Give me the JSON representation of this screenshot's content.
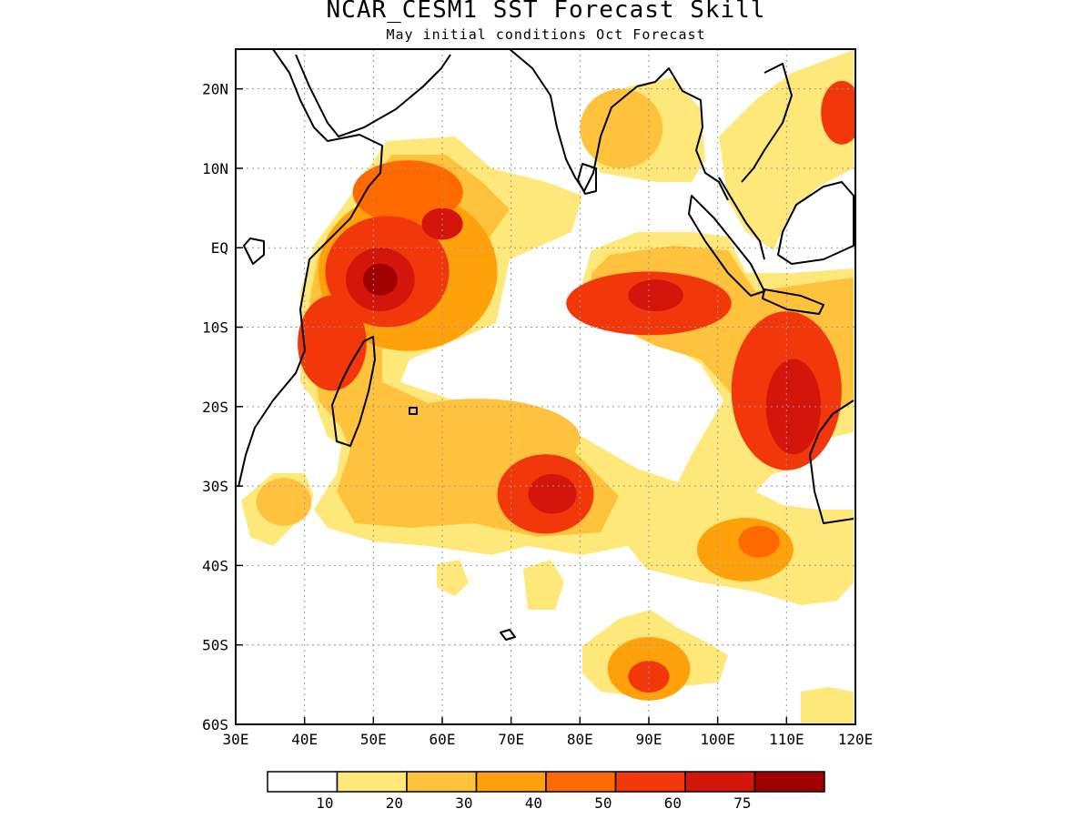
{
  "title": "NCAR_CESM1 SST Forecast Skill",
  "subtitle": "May initial conditions  Oct Forecast",
  "colors": {
    "levels": [
      "#ffffff",
      "#ffe87a",
      "#ffc23c",
      "#ffa10a",
      "#ff6a00",
      "#f2380a",
      "#d4150c",
      "#a00000"
    ],
    "coast": "#000000",
    "grid": "#9a9a9a"
  },
  "chart_data": {
    "type": "heatmap",
    "title": "NCAR_CESM1 SST Forecast Skill",
    "subtitle": "May initial conditions  Oct Forecast",
    "xlim": [
      30,
      120
    ],
    "ylim": [
      -60,
      25
    ],
    "x_ticks": [
      30,
      40,
      50,
      60,
      70,
      80,
      90,
      100,
      110,
      120
    ],
    "x_tick_labels": [
      "30E",
      "40E",
      "50E",
      "60E",
      "70E",
      "80E",
      "90E",
      "100E",
      "110E",
      "120E"
    ],
    "y_ticks": [
      20,
      10,
      0,
      -10,
      -20,
      -30,
      -40,
      -50,
      -60
    ],
    "y_tick_labels": [
      "20N",
      "10N",
      "EQ",
      "10S",
      "20S",
      "30S",
      "40S",
      "50S",
      "60S"
    ],
    "grid": true,
    "colorbar": {
      "position": "bottom",
      "thresholds": [
        10,
        20,
        30,
        40,
        50,
        60,
        75
      ],
      "labels": [
        "10",
        "20",
        "30",
        "40",
        "50",
        "60",
        "75"
      ]
    },
    "regions": [
      {
        "lon": 55,
        "lat": -3,
        "rx": 13,
        "ry": 10,
        "level": 3
      },
      {
        "lon": 52,
        "lat": -3,
        "rx": 9,
        "ry": 7,
        "level": 5
      },
      {
        "lon": 51,
        "lat": -4,
        "rx": 5,
        "ry": 4,
        "level": 6
      },
      {
        "lon": 51,
        "lat": -4,
        "rx": 2.5,
        "ry": 2,
        "level": 7
      },
      {
        "lon": 55,
        "lat": 7,
        "rx": 8,
        "ry": 4,
        "level": 4
      },
      {
        "lon": 44,
        "lat": -12,
        "rx": 5,
        "ry": 6,
        "level": 5
      },
      {
        "lon": 60,
        "lat": 3,
        "rx": 3,
        "ry": 2,
        "level": 6
      },
      {
        "lon": 65,
        "lat": -24,
        "rx": 15,
        "ry": 5,
        "level": 2
      },
      {
        "lon": 75,
        "lat": -31,
        "rx": 7,
        "ry": 5,
        "level": 5
      },
      {
        "lon": 76,
        "lat": -31,
        "rx": 3.5,
        "ry": 2.5,
        "level": 6
      },
      {
        "lon": 90,
        "lat": -7,
        "rx": 12,
        "ry": 4,
        "level": 5
      },
      {
        "lon": 91,
        "lat": -6,
        "rx": 4,
        "ry": 2,
        "level": 6
      },
      {
        "lon": 110,
        "lat": -18,
        "rx": 8,
        "ry": 10,
        "level": 5
      },
      {
        "lon": 111,
        "lat": -20,
        "rx": 4,
        "ry": 6,
        "level": 6
      },
      {
        "lon": 104,
        "lat": -38,
        "rx": 7,
        "ry": 4,
        "level": 3
      },
      {
        "lon": 106,
        "lat": -37,
        "rx": 3,
        "ry": 2,
        "level": 4
      },
      {
        "lon": 90,
        "lat": -53,
        "rx": 6,
        "ry": 4,
        "level": 3
      },
      {
        "lon": 90,
        "lat": -54,
        "rx": 3,
        "ry": 2,
        "level": 5
      },
      {
        "lon": 118,
        "lat": 17,
        "rx": 3,
        "ry": 4,
        "level": 5
      },
      {
        "lon": 86,
        "lat": 15,
        "rx": 6,
        "ry": 5,
        "level": 2
      },
      {
        "lon": 37,
        "lat": -32,
        "rx": 4,
        "ry": 3,
        "level": 2
      }
    ]
  }
}
